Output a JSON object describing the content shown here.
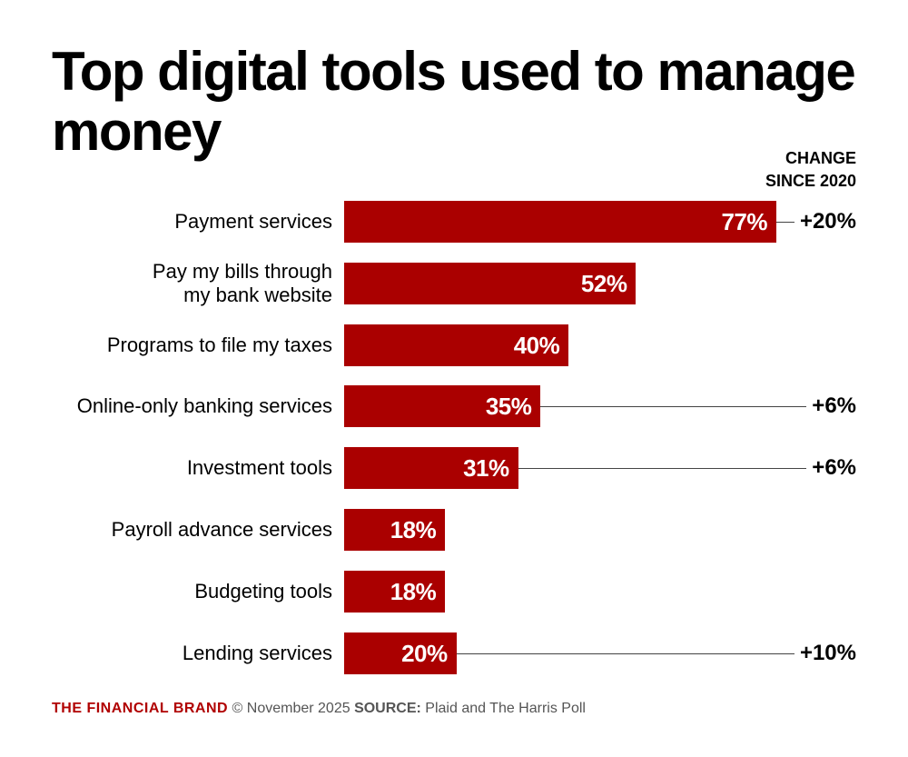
{
  "chart_data": {
    "type": "bar",
    "orientation": "horizontal",
    "title": "Top digital tools used to manage money",
    "categories": [
      "Payment services",
      "Pay my bills through\nmy bank website",
      "Programs to file my taxes",
      "Online-only banking services",
      "Investment tools",
      "Payroll advance services",
      "Budgeting tools",
      "Lending services"
    ],
    "values": [
      77,
      52,
      40,
      35,
      31,
      18,
      18,
      20
    ],
    "value_labels": [
      "77%",
      "52%",
      "40%",
      "35%",
      "31%",
      "18%",
      "18%",
      "20%"
    ],
    "change_header": [
      "CHANGE",
      "SINCE 2020"
    ],
    "changes": [
      "+20%",
      "",
      "",
      "+6%",
      "+6%",
      "",
      "",
      "+10%"
    ],
    "unit": "%",
    "bar_color": "#aa0000",
    "grid": false
  },
  "footer": {
    "brand": "THE FINANCIAL BRAND",
    "date": " © November 2025 ",
    "source_label": "SOURCE:",
    "source": " Plaid and The Harris Poll"
  },
  "colors": {
    "brand": "#b00000",
    "bar": "#aa0000"
  }
}
